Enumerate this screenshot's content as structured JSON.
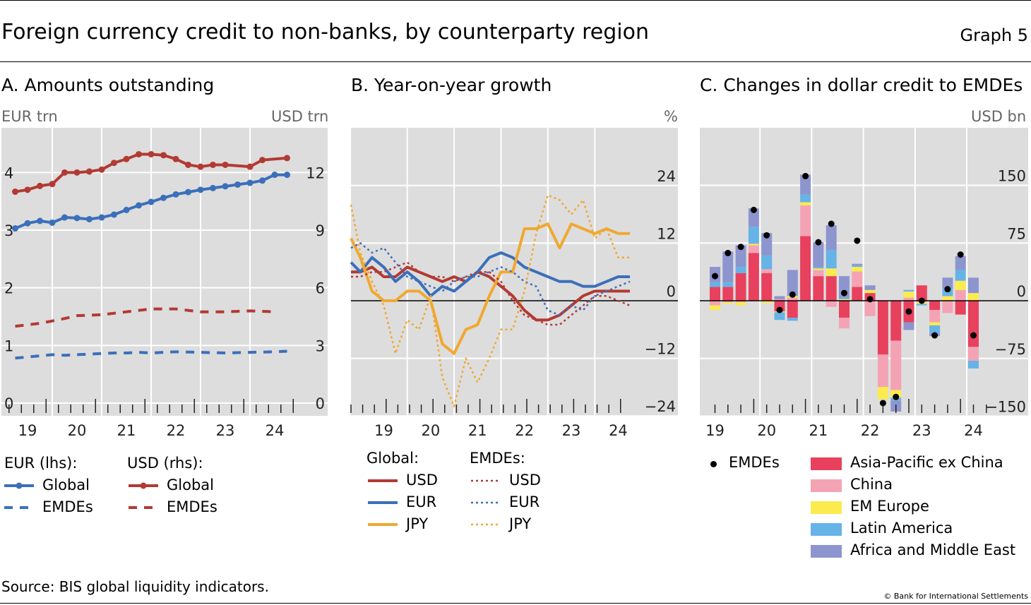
{
  "graph": {
    "title": "Foreign currency credit to non-banks, by counterparty region",
    "number": "Graph 5",
    "source": "Source: BIS global liquidity indicators.",
    "copyright": "© Bank for International Settlements"
  },
  "chart_data": [
    {
      "panel": "A",
      "type": "line",
      "title": "A. Amounts outstanding",
      "y_left_unit": "EUR trn",
      "y_right_unit": "USD trn",
      "y_left_ticks": [
        0,
        1,
        2,
        3,
        4
      ],
      "y_right_ticks": [
        0,
        3,
        6,
        9,
        12
      ],
      "ylim_left": [
        0,
        4.8
      ],
      "ylim_right": [
        0,
        14.4
      ],
      "x_tick_labels": [
        "19",
        "20",
        "21",
        "22",
        "23",
        "24"
      ],
      "x": [
        2018.75,
        2019.0,
        2019.25,
        2019.5,
        2019.75,
        2020.0,
        2020.25,
        2020.5,
        2020.75,
        2021.0,
        2021.25,
        2021.5,
        2021.75,
        2022.0,
        2022.25,
        2022.5,
        2022.75,
        2023.0,
        2023.25,
        2023.5,
        2023.75,
        2024.0,
        2024.25
      ],
      "xlim": [
        2018.5,
        2024.5
      ],
      "legend_headers": [
        "EUR (lhs):",
        "USD (rhs):"
      ],
      "series": [
        {
          "name": "Global",
          "group": "EUR (lhs):",
          "axis": "left",
          "color": "#3b6fba",
          "style": "solid-marker",
          "values": [
            3.03,
            3.12,
            3.16,
            3.13,
            3.22,
            3.21,
            3.19,
            3.22,
            3.27,
            3.35,
            3.43,
            3.49,
            3.56,
            3.62,
            3.66,
            3.7,
            3.73,
            3.76,
            3.79,
            3.82,
            3.86,
            3.96,
            3.96
          ]
        },
        {
          "name": "EMDEs",
          "group": "EUR (lhs):",
          "axis": "left",
          "color": "#3b6fba",
          "style": "dashed",
          "values": [
            0.78,
            0.8,
            0.82,
            0.84,
            0.83,
            0.84,
            0.85,
            0.86,
            0.87,
            0.87,
            0.88,
            0.87,
            0.89,
            0.88,
            0.87,
            0.88,
            0.89,
            0.9
          ],
          "x": [
            2018.75,
            2019.0,
            2019.25,
            2019.5,
            2019.75,
            2020.0,
            2020.25,
            2020.5,
            2020.75,
            2021.0,
            2021.25,
            2021.5,
            2022.0,
            2022.5,
            2023.0,
            2023.5,
            2024.0,
            2024.25
          ]
        },
        {
          "name": "Global",
          "group": "USD (rhs):",
          "axis": "right",
          "color": "#b23a33",
          "style": "solid-marker",
          "values": [
            11.0,
            11.1,
            11.3,
            11.4,
            12.0,
            12.0,
            12.05,
            12.15,
            12.5,
            12.7,
            12.95,
            12.95,
            12.9,
            12.7,
            12.4,
            12.3,
            12.4,
            12.4,
            12.3,
            12.65,
            12.75
          ],
          "x": [
            2018.75,
            2019.0,
            2019.25,
            2019.5,
            2019.75,
            2020.0,
            2020.25,
            2020.5,
            2020.75,
            2021.0,
            2021.25,
            2021.5,
            2021.75,
            2022.0,
            2022.25,
            2022.5,
            2022.75,
            2023.0,
            2023.5,
            2023.75,
            2024.25
          ]
        },
        {
          "name": "EMDEs",
          "group": "USD (rhs):",
          "axis": "right",
          "color": "#b23a33",
          "style": "dashed",
          "values": [
            4.0,
            4.15,
            4.4,
            4.55,
            4.6,
            4.75,
            4.9,
            4.9,
            4.75,
            4.75,
            4.8,
            4.75
          ],
          "x": [
            2018.75,
            2019.25,
            2019.75,
            2020.0,
            2020.5,
            2021.0,
            2021.5,
            2022.0,
            2022.5,
            2023.0,
            2023.5,
            2024.0
          ]
        }
      ]
    },
    {
      "panel": "B",
      "type": "line",
      "title": "B. Year-on-year growth",
      "y_unit": "%",
      "y_ticks": [
        -24,
        -12,
        0,
        12,
        24
      ],
      "ylim": [
        -24,
        36
      ],
      "x_tick_labels": [
        "19",
        "20",
        "21",
        "22",
        "23",
        "24"
      ],
      "xlim": [
        2018.3,
        2024.4
      ],
      "legend_headers": [
        "Global:",
        "EMDEs:"
      ],
      "x": [
        2018.3,
        2018.5,
        2018.75,
        2019.0,
        2019.25,
        2019.5,
        2019.75,
        2020.0,
        2020.25,
        2020.5,
        2020.75,
        2021.0,
        2021.25,
        2021.5,
        2021.75,
        2022.0,
        2022.25,
        2022.5,
        2022.75,
        2023.0,
        2023.25,
        2023.5,
        2023.75,
        2024.0,
        2024.25
      ],
      "series": [
        {
          "name": "USD",
          "group": "Global:",
          "color": "#b23a33",
          "style": "solid",
          "values": [
            6,
            6,
            7,
            5,
            5,
            7,
            6,
            5,
            4,
            5,
            4,
            6,
            5,
            3,
            1,
            -2,
            -4,
            -4,
            -3,
            -1,
            1,
            2,
            2,
            2,
            2
          ]
        },
        {
          "name": "EUR",
          "group": "Global:",
          "color": "#3b6fba",
          "style": "solid",
          "values": [
            8,
            6,
            9,
            7,
            4,
            6,
            4,
            1,
            3,
            2,
            4,
            6,
            9,
            10,
            9,
            7,
            6,
            5,
            4,
            4,
            3,
            3,
            4,
            5,
            5
          ]
        },
        {
          "name": "JPY",
          "group": "Global:",
          "color": "#f0a830",
          "style": "solid",
          "values": [
            13,
            9,
            2,
            0,
            0,
            2,
            2,
            0,
            -9,
            -11,
            -6,
            -5,
            1,
            6,
            6,
            15,
            15,
            16,
            11,
            16,
            15,
            14,
            15,
            14,
            14
          ]
        },
        {
          "name": "USD",
          "group": "EMDEs:",
          "color": "#b23a33",
          "style": "dotted",
          "values": [
            5,
            5,
            6,
            6,
            7,
            8,
            6,
            5,
            5,
            4,
            5,
            6,
            6,
            4,
            0,
            -3,
            -4,
            -5,
            -5,
            -3,
            -1,
            1,
            1,
            0,
            -1
          ]
        },
        {
          "name": "EUR",
          "group": "EMDEs:",
          "color": "#3b6fba",
          "style": "dotted",
          "values": [
            11,
            12,
            10,
            11,
            8,
            5,
            4,
            3,
            2,
            4,
            5,
            5,
            6,
            7,
            6,
            4,
            3,
            -2,
            -3,
            -1,
            -2,
            1,
            2,
            3,
            4
          ]
        },
        {
          "name": "JPY",
          "group": "EMDEs:",
          "color": "#f0a830",
          "style": "dotted",
          "values": [
            20,
            10,
            4,
            -1,
            -11,
            -4,
            -6,
            1,
            -16,
            -22,
            -12,
            -17,
            -12,
            -6,
            -6,
            2,
            14,
            22,
            21,
            18,
            21,
            13,
            15,
            9,
            9
          ]
        }
      ]
    },
    {
      "panel": "C",
      "type": "bar",
      "title": "C. Changes in dollar credit to EMDEs",
      "y_unit": "USD bn",
      "y_ticks": [
        -150,
        -75,
        0,
        75,
        150
      ],
      "ylim": [
        -150,
        225
      ],
      "x_tick_labels": [
        "19",
        "20",
        "21",
        "22",
        "23",
        "24"
      ],
      "x_tick_year_index": [
        0,
        4,
        8,
        12,
        16,
        20
      ],
      "stack_order": [
        "Asia-Pacific ex China",
        "China",
        "EM Europe",
        "Latin America",
        "Africa and Middle East"
      ],
      "colors": {
        "Asia-Pacific ex China": "#e8415e",
        "China": "#f4a3b5",
        "EM Europe": "#fbeb4f",
        "Latin America": "#66b3e8",
        "Africa and Middle East": "#8d95cf"
      },
      "dot_series": "EMDEs",
      "bars": [
        {
          "q": "2019Q1",
          "parts": [
            18,
            -6,
            -6,
            6,
            20
          ],
          "emdes": 32
        },
        {
          "q": "2019Q2",
          "parts": [
            18,
            -2,
            -2,
            6,
            40
          ],
          "emdes": 62
        },
        {
          "q": "2019Q3",
          "parts": [
            36,
            -2,
            -4,
            8,
            28
          ],
          "emdes": 70
        },
        {
          "q": "2019Q4",
          "parts": [
            62,
            10,
            2,
            22,
            24
          ],
          "emdes": 118
        },
        {
          "q": "2020Q1",
          "parts": [
            36,
            5,
            -3,
            18,
            29
          ],
          "emdes": 85
        },
        {
          "q": "2020Q2",
          "parts": [
            -14,
            2,
            -1,
            -10,
            4
          ],
          "emdes": -12
        },
        {
          "q": "2020Q3",
          "parts": [
            -22,
            4,
            2,
            -4,
            34
          ],
          "emdes": 8
        },
        {
          "q": "2020Q4",
          "parts": [
            84,
            40,
            4,
            10,
            26
          ],
          "emdes": 162
        },
        {
          "q": "2021Q1",
          "parts": [
            32,
            8,
            2,
            2,
            32
          ],
          "emdes": 76
        },
        {
          "q": "2021Q2",
          "parts": [
            32,
            -8,
            10,
            24,
            32
          ],
          "emdes": 100
        },
        {
          "q": "2021Q3",
          "parts": [
            -22,
            -14,
            2,
            2,
            28
          ],
          "emdes": 10
        },
        {
          "q": "2021Q4",
          "parts": [
            18,
            20,
            6,
            2,
            2
          ],
          "emdes": 78
        },
        {
          "q": "2022Q1",
          "parts": [
            10,
            -20,
            4,
            0,
            6
          ],
          "emdes": 2
        },
        {
          "q": "2022Q2",
          "parts": [
            -70,
            -42,
            -16,
            0,
            0
          ],
          "emdes": -133
        },
        {
          "q": "2022Q3",
          "parts": [
            -52,
            -64,
            -10,
            -4,
            -14
          ],
          "emdes": -125
        },
        {
          "q": "2022Q4",
          "parts": [
            -28,
            4,
            8,
            2,
            -10
          ],
          "emdes": -14
        },
        {
          "q": "2023Q1",
          "parts": [
            20,
            -2,
            -2,
            -2,
            0
          ],
          "emdes": 0
        },
        {
          "q": "2023Q2",
          "parts": [
            -12,
            -16,
            -4,
            -10,
            -4
          ],
          "emdes": -45
        },
        {
          "q": "2023Q3",
          "parts": [
            0,
            -16,
            6,
            10,
            14
          ],
          "emdes": 15
        },
        {
          "q": "2023Q4",
          "parts": [
            -18,
            14,
            12,
            14,
            18
          ],
          "emdes": 60
        },
        {
          "q": "2024Q1",
          "parts": [
            -60,
            -18,
            10,
            -10,
            20
          ],
          "emdes": -45
        }
      ],
      "legend_dot_label": "EMDEs"
    }
  ]
}
